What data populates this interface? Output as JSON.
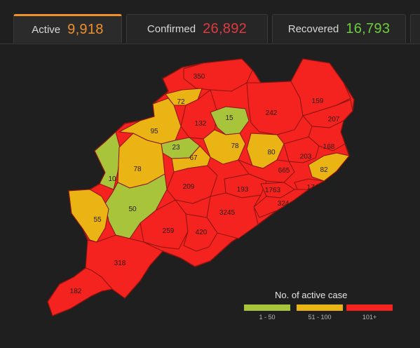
{
  "tabs": [
    {
      "label": "Active",
      "value": "9,918",
      "color": "#f0902a"
    },
    {
      "label": "Confirmed",
      "value": "26,892",
      "color": "#e03a40"
    },
    {
      "label": "Recovered",
      "value": "16,793",
      "color": "#6ccd3c"
    }
  ],
  "colors": {
    "low": "#a8c43a",
    "mid": "#e9b414",
    "high": "#f4231f",
    "border": "#8a1410"
  },
  "districts": [
    {
      "label": "350",
      "level": "high"
    },
    {
      "label": "72",
      "level": "mid"
    },
    {
      "label": "132",
      "level": "high"
    },
    {
      "label": "15",
      "level": "low"
    },
    {
      "label": "242",
      "level": "high"
    },
    {
      "label": "159",
      "level": "high"
    },
    {
      "label": "207",
      "level": "high"
    },
    {
      "label": "168",
      "level": "high"
    },
    {
      "label": "95",
      "level": "mid"
    },
    {
      "label": "23",
      "level": "low"
    },
    {
      "label": "78",
      "level": "mid"
    },
    {
      "label": "80",
      "level": "mid"
    },
    {
      "label": "203",
      "level": "high"
    },
    {
      "label": "82",
      "level": "mid"
    },
    {
      "label": "10",
      "level": "low"
    },
    {
      "label": "78",
      "level": "mid"
    },
    {
      "label": "67",
      "level": "mid"
    },
    {
      "label": "665",
      "level": "high"
    },
    {
      "label": "209",
      "level": "high"
    },
    {
      "label": "193",
      "level": "high"
    },
    {
      "label": "1763",
      "level": "high"
    },
    {
      "label": "174",
      "level": "high"
    },
    {
      "label": "50",
      "level": "low"
    },
    {
      "label": "55",
      "level": "mid"
    },
    {
      "label": "324",
      "level": "high"
    },
    {
      "label": "3245",
      "level": "high"
    },
    {
      "label": "259",
      "level": "high"
    },
    {
      "label": "420",
      "level": "high"
    },
    {
      "label": "318",
      "level": "high"
    },
    {
      "label": "182",
      "level": "high"
    }
  ],
  "legend": {
    "title": "No. of active case",
    "items": [
      {
        "range": "1 - 50",
        "level": "low"
      },
      {
        "range": "51 - 100",
        "level": "mid"
      },
      {
        "range": "101+",
        "level": "high"
      }
    ]
  }
}
